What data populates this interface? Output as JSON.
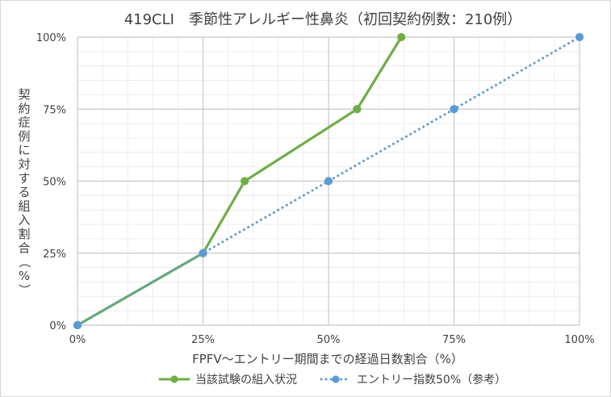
{
  "chart_data": {
    "type": "line",
    "title": "419CLI　季節性アレルギー性鼻炎（初回契約例数：210例）",
    "xlabel": "FPFV～エントリー期間までの経過日数割合（%）",
    "ylabel": "契約症例に対する組入割合（%）",
    "xlim": [
      0,
      100
    ],
    "ylim": [
      0,
      100
    ],
    "x_ticks": [
      "0%",
      "25%",
      "50%",
      "75%",
      "100%"
    ],
    "y_ticks": [
      "0%",
      "25%",
      "50%",
      "75%",
      "100%"
    ],
    "grid": true,
    "legend_position": "bottom",
    "series": [
      {
        "name": "当該試験の組入状況",
        "color": "#70AD47",
        "style": "solid",
        "x": [
          0,
          25,
          33.3,
          55.7,
          64.5
        ],
        "y": [
          0,
          25,
          50,
          75,
          100
        ]
      },
      {
        "name": "エントリー指数50%（参考）",
        "color": "#5B9BD5",
        "style": "dotted",
        "x": [
          0,
          25,
          50,
          75,
          100
        ],
        "y": [
          0,
          25,
          50,
          75,
          100
        ]
      }
    ]
  }
}
